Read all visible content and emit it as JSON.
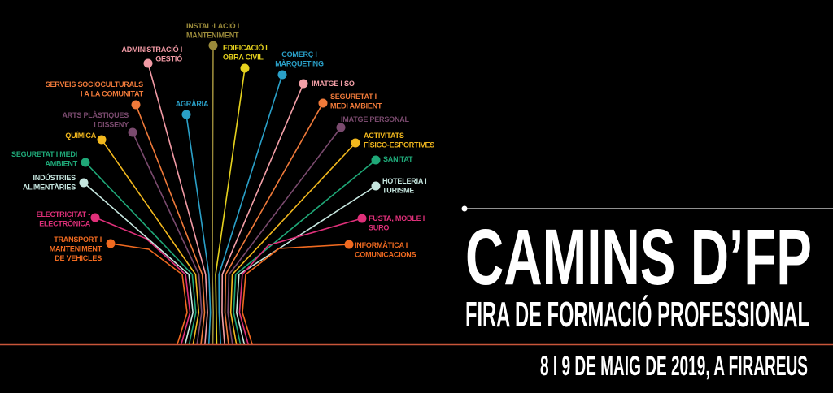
{
  "poster": {
    "title": "CAMINS D’FP",
    "subtitle": "FIRA DE FORMACIÓ PROFESSIONAL",
    "date_place": "8 I 9 DE MAIG DE 2019, A FIRAREUS",
    "background_color": "#000000",
    "text_color": "#ffffff",
    "ground_line_color": "#c8553a"
  },
  "tree": {
    "branches": [
      {
        "lines": [
          "TRANSPORT I",
          "MANTENIMENT",
          "DE VEHICLES"
        ],
        "color": "#f06a20",
        "side": "left"
      },
      {
        "lines": [
          "ELECTRICITAT -",
          "ELECTRÒNICA"
        ],
        "color": "#e0307a",
        "side": "left"
      },
      {
        "lines": [
          "INDÚSTRIES",
          "ALIMENTÀRIES"
        ],
        "color": "#c6e6df",
        "side": "left"
      },
      {
        "lines": [
          "SEGURETAT I MEDI",
          "AMBIENT"
        ],
        "color": "#1fa878",
        "side": "left"
      },
      {
        "lines": [
          "QUÍMICA"
        ],
        "color": "#f2b81e",
        "side": "left"
      },
      {
        "lines": [
          "ARTS PLÀSTIQUES",
          "I DISSENY"
        ],
        "color": "#7a4a6e",
        "side": "left"
      },
      {
        "lines": [
          "SERVEIS SOCIOCULTURALS",
          "I A LA COMUNITAT"
        ],
        "color": "#f07a3a",
        "side": "left"
      },
      {
        "lines": [
          "ADMINISTRACIÓ I",
          "GESTIÓ"
        ],
        "color": "#f29aa5",
        "side": "left"
      },
      {
        "lines": [
          "AGRÀRIA"
        ],
        "color": "#2aa0c8",
        "side": "left"
      },
      {
        "lines": [
          "INSTAL·LACIÓ I",
          "MANTENIMENT"
        ],
        "color": "#9a8a3a",
        "side": "top"
      },
      {
        "lines": [
          "EDIFICACIÓ I",
          "OBRA CIVIL"
        ],
        "color": "#e6d21e",
        "side": "right"
      },
      {
        "lines": [
          "COMERÇ I",
          "MÀRQUETING"
        ],
        "color": "#2aa0c8",
        "side": "right"
      },
      {
        "lines": [
          "IMATGE I SO"
        ],
        "color": "#f4a0a8",
        "side": "right"
      },
      {
        "lines": [
          "SEGURETAT I",
          "MEDI AMBIENT"
        ],
        "color": "#f07a3a",
        "side": "right"
      },
      {
        "lines": [
          "IMATGE PERSONAL"
        ],
        "color": "#7a4a6e",
        "side": "right"
      },
      {
        "lines": [
          "ACTIVITATS",
          "FÍSICO-ESPORTIVES"
        ],
        "color": "#f2b81e",
        "side": "right"
      },
      {
        "lines": [
          "SANITAT"
        ],
        "color": "#1fa878",
        "side": "right"
      },
      {
        "lines": [
          "HOTELERIA I",
          "TURISME"
        ],
        "color": "#c6e6df",
        "side": "right"
      },
      {
        "lines": [
          "FUSTA, MOBLE I",
          "SURO"
        ],
        "color": "#e0307a",
        "side": "right"
      },
      {
        "lines": [
          "INFORMÀTICA I",
          "COMUNICACIONS"
        ],
        "color": "#f06a20",
        "side": "right"
      }
    ]
  }
}
